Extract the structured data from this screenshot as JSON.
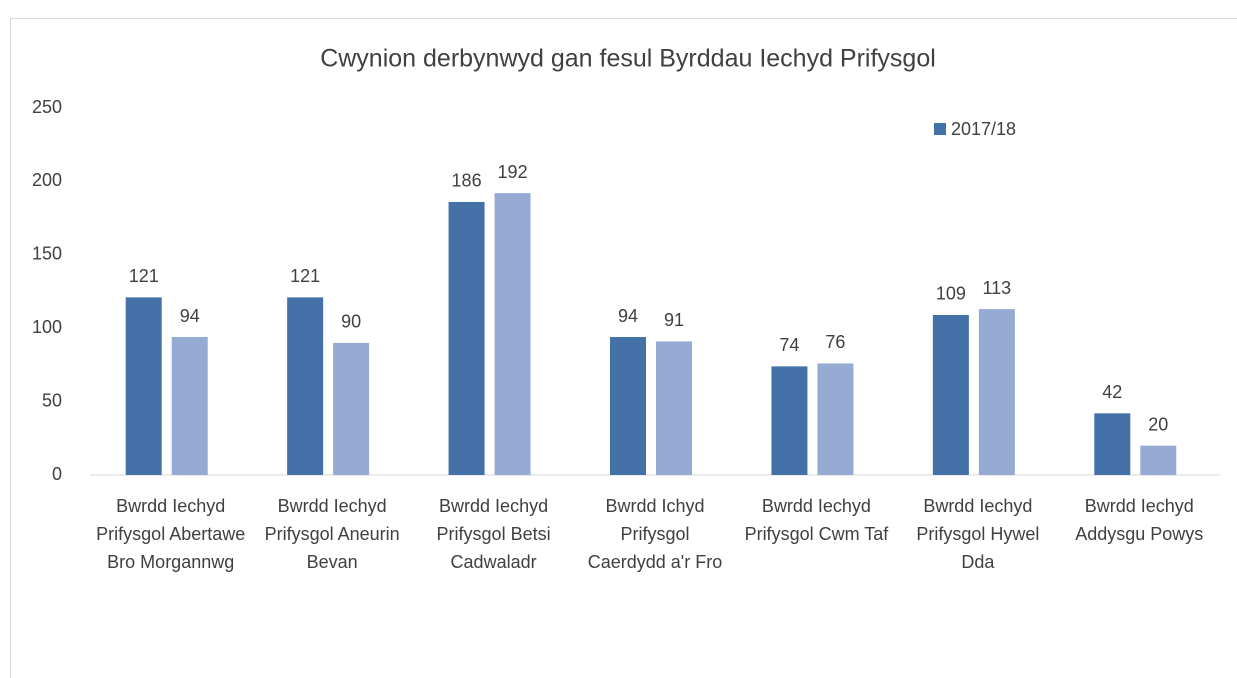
{
  "chart_data": {
    "type": "bar",
    "title": "Cwynion derbynwyd gan fesul Byrddau Iechyd Prifysgol",
    "categories": [
      "Bwrdd Iechyd Prifysgol Abertawe Bro Morgannwg",
      "Bwrdd Iechyd Prifysgol Aneurin Bevan",
      "Bwrdd Iechyd Prifysgol Betsi Cadwaladr",
      "Bwrdd Ichyd Prifysgol Caerdydd a'r Fro",
      "Bwrdd Iechyd Prifysgol Cwm Taf",
      "Bwrdd Iechyd Prifysgol Hywel Dda",
      "Bwrdd Iechyd Addysgu Powys"
    ],
    "series": [
      {
        "name": "2017/18",
        "color": "#4472a8",
        "values": [
          121,
          121,
          186,
          94,
          74,
          109,
          42
        ]
      },
      {
        "color": "#95abd4",
        "values": [
          94,
          90,
          192,
          91,
          76,
          113,
          20
        ]
      }
    ],
    "ylim": [
      0,
      250
    ],
    "yticks": [
      0,
      50,
      100,
      150,
      200,
      250
    ],
    "grid": false,
    "legend": "top-right"
  }
}
